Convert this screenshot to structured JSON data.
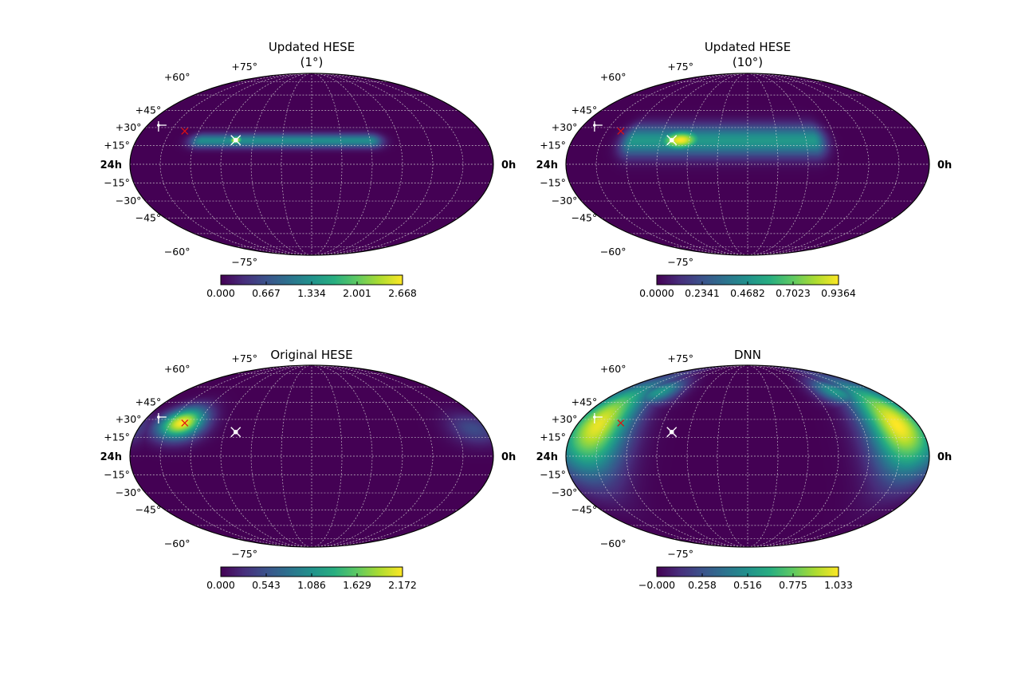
{
  "figure": {
    "type": "heatmap",
    "projection": "mollweide",
    "grid": true,
    "colormap": "viridis"
  },
  "chart_data": [
    {
      "type": "heatmap",
      "title": "Updated HESE",
      "subtitle": "(1°)",
      "colormap": "viridis",
      "colorbar_ticks": [
        "0.000",
        "0.667",
        "1.334",
        "2.001",
        "2.668"
      ],
      "vrange": [
        0,
        2.668
      ],
      "ra_labels": {
        "left": "24h",
        "right": "0h"
      },
      "dec_labels": [
        "+75°",
        "+60°",
        "+45°",
        "+30°",
        "+15°",
        "−15°",
        "−30°",
        "−45°",
        "−60°",
        "−75°"
      ],
      "blobs": [
        {
          "shape": "band",
          "ra_hours": [
            8.0,
            19.5
          ],
          "dec_deg": 19,
          "dec_width_deg": 4,
          "peak_value": 1.3
        },
        {
          "shape": "spot",
          "ra_hours": 17.2,
          "dec_deg": 19.5,
          "ra_sigma_hours": 0.35,
          "dec_sigma_deg": 2.5,
          "peak_value": 2.668
        },
        {
          "shape": "spot",
          "ra_hours": 14.3,
          "dec_deg": 19.5,
          "ra_sigma_hours": 0.6,
          "dec_sigma_deg": 2.5,
          "peak_value": 0.8
        }
      ],
      "markers": [
        {
          "kind": "white-star",
          "ra_hours": 17.2,
          "dec_deg": 19.5
        },
        {
          "kind": "red-x",
          "ra_hours": 21.0,
          "dec_deg": 27
        },
        {
          "kind": "white-hook",
          "ra_hours": 23.2,
          "dec_deg": 32
        }
      ]
    },
    {
      "type": "heatmap",
      "title": "Updated HESE",
      "subtitle": "(10°)",
      "colormap": "viridis",
      "colorbar_ticks": [
        "0.0000",
        "0.2341",
        "0.4682",
        "0.7023",
        "0.9364"
      ],
      "vrange": [
        0,
        0.9364
      ],
      "ra_labels": {
        "left": "24h",
        "right": "0h"
      },
      "dec_labels": [
        "+75°",
        "+60°",
        "+45°",
        "+30°",
        "+15°",
        "−15°",
        "−30°",
        "−45°",
        "−60°",
        "−75°"
      ],
      "blobs": [
        {
          "shape": "band",
          "ra_hours": [
            7.5,
            19.8
          ],
          "dec_deg": 19,
          "dec_width_deg": 9,
          "peak_value": 0.5
        },
        {
          "shape": "spot",
          "ra_hours": 16.6,
          "dec_deg": 19.5,
          "ra_sigma_hours": 1.1,
          "dec_sigma_deg": 6,
          "peak_value": 0.9364
        }
      ],
      "markers": [
        {
          "kind": "white-star",
          "ra_hours": 17.2,
          "dec_deg": 19.5
        },
        {
          "kind": "red-x",
          "ra_hours": 21.0,
          "dec_deg": 27
        },
        {
          "kind": "white-hook",
          "ra_hours": 23.2,
          "dec_deg": 32
        }
      ]
    },
    {
      "type": "heatmap",
      "title": "Original HESE",
      "subtitle": "",
      "colormap": "viridis",
      "colorbar_ticks": [
        "0.000",
        "0.543",
        "1.086",
        "1.629",
        "2.172"
      ],
      "vrange": [
        0,
        2.172
      ],
      "ra_labels": {
        "left": "24h",
        "right": "0h"
      },
      "dec_labels": [
        "+75°",
        "+60°",
        "+45°",
        "+30°",
        "+15°",
        "−15°",
        "−30°",
        "−45°",
        "−60°",
        "−75°"
      ],
      "blobs": [
        {
          "shape": "spot",
          "ra_hours": 21.2,
          "dec_deg": 27,
          "ra_sigma_hours": 1.1,
          "dec_sigma_deg": 9,
          "peak_value": 2.172
        },
        {
          "shape": "spot",
          "ra_hours": 0.8,
          "dec_deg": 22,
          "ra_sigma_hours": 1.2,
          "dec_sigma_deg": 9,
          "peak_value": 0.5
        }
      ],
      "markers": [
        {
          "kind": "white-star",
          "ra_hours": 17.2,
          "dec_deg": 19.5
        },
        {
          "kind": "red-x",
          "ra_hours": 21.0,
          "dec_deg": 27
        },
        {
          "kind": "white-hook",
          "ra_hours": 23.2,
          "dec_deg": 32
        }
      ]
    },
    {
      "type": "heatmap",
      "title": "DNN",
      "subtitle": "",
      "colormap": "viridis",
      "colorbar_ticks": [
        "−0.000",
        "0.258",
        "0.516",
        "0.775",
        "1.033"
      ],
      "vrange": [
        0,
        1.033
      ],
      "ra_labels": {
        "left": "24h",
        "right": "0h"
      },
      "dec_labels": [
        "+75°",
        "+60°",
        "+45°",
        "+30°",
        "+15°",
        "−15°",
        "−30°",
        "−45°",
        "−60°",
        "−75°"
      ],
      "blobs": [
        {
          "shape": "arc",
          "ra_hours": 1.5,
          "dec_deg": 25,
          "ra_sigma_hours": 1.6,
          "dec_sigma_deg": 28,
          "peak_value": 1.033
        },
        {
          "shape": "arc",
          "ra_hours": 22.5,
          "dec_deg": 25,
          "ra_sigma_hours": 1.6,
          "dec_sigma_deg": 28,
          "peak_value": 1.0
        },
        {
          "shape": "arc",
          "ra_hours": 20.2,
          "dec_deg": 55,
          "ra_sigma_hours": 1.3,
          "dec_sigma_deg": 9,
          "peak_value": 0.55
        },
        {
          "shape": "arc",
          "ra_hours": 3.8,
          "dec_deg": 55,
          "ra_sigma_hours": 1.3,
          "dec_sigma_deg": 9,
          "peak_value": 0.55
        }
      ],
      "markers": [
        {
          "kind": "white-star",
          "ra_hours": 17.2,
          "dec_deg": 19.5
        },
        {
          "kind": "red-x",
          "ra_hours": 21.0,
          "dec_deg": 27
        },
        {
          "kind": "white-hook",
          "ra_hours": 23.2,
          "dec_deg": 32
        }
      ]
    }
  ]
}
